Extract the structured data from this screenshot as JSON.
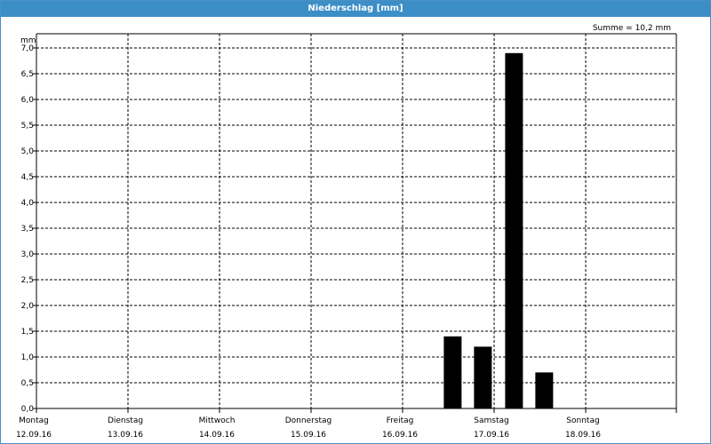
{
  "window": {
    "title": "Niederschlag [mm]"
  },
  "sum_label": "Summe = 10,2 mm",
  "chart_data": {
    "type": "bar",
    "title": "Niederschlag [mm]",
    "ylabel": "mm",
    "xlabel": "",
    "ylim": [
      0,
      7.0
    ],
    "yticks": [
      "0,0",
      "0,5",
      "1,0",
      "1,5",
      "2,0",
      "2,5",
      "3,0",
      "3,5",
      "4,0",
      "4,5",
      "5,0",
      "5,5",
      "6,0",
      "6,5",
      "7,0"
    ],
    "days": [
      {
        "name": "Montag",
        "date": "12.09.16"
      },
      {
        "name": "Dienstag",
        "date": "13.09.16"
      },
      {
        "name": "Mittwoch",
        "date": "14.09.16"
      },
      {
        "name": "Donnerstag",
        "date": "15.09.16"
      },
      {
        "name": "Freitag",
        "date": "16.09.16"
      },
      {
        "name": "Samstag",
        "date": "17.09.16"
      },
      {
        "name": "Sonntag",
        "date": "18.09.16"
      }
    ],
    "bars": [
      {
        "day_offset": 4.45,
        "value": 1.4
      },
      {
        "day_offset": 4.78,
        "value": 1.2
      },
      {
        "day_offset": 5.12,
        "value": 6.9
      },
      {
        "day_offset": 5.45,
        "value": 0.7
      }
    ],
    "grid": true,
    "bar_color": "#000000"
  }
}
